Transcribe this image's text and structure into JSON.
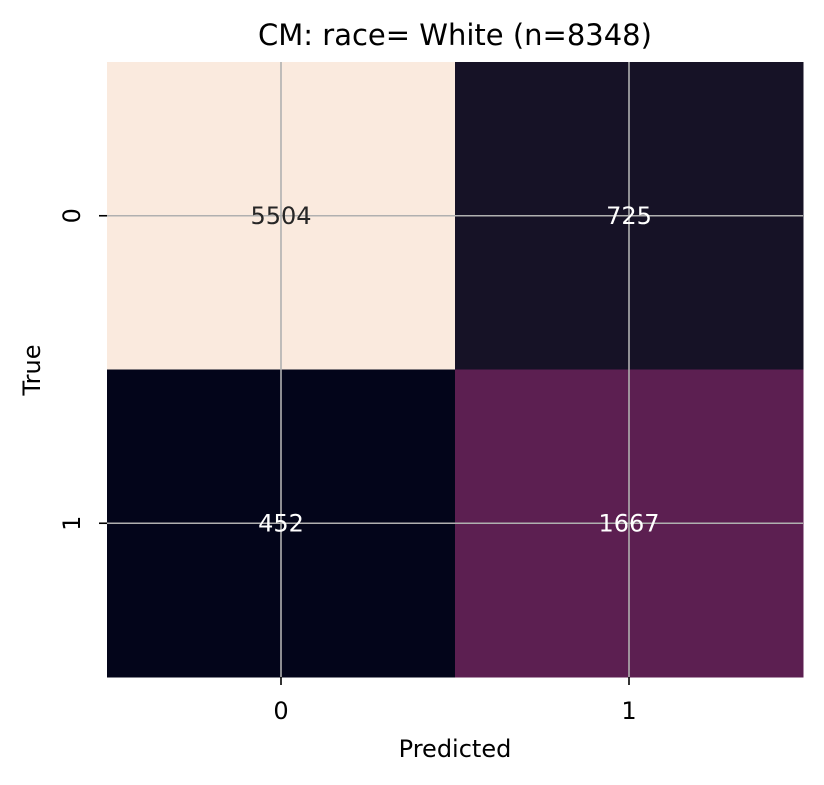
{
  "chart_data": {
    "type": "heatmap",
    "title": "CM: race= White (n=8348)",
    "xlabel": "Predicted",
    "ylabel": "True",
    "x_categories": [
      "0",
      "1"
    ],
    "y_categories": [
      "0",
      "1"
    ],
    "values": [
      [
        5504,
        725
      ],
      [
        452,
        1667
      ]
    ],
    "cell_labels": [
      [
        "5504",
        "725"
      ],
      [
        "452",
        "1667"
      ]
    ],
    "colorscale": "rocket",
    "colors": [
      [
        "#faeade",
        "#161226"
      ],
      [
        "#03051a",
        "#5c1f51"
      ]
    ],
    "text_colors": [
      [
        "#262626",
        "#ffffff"
      ],
      [
        "#ffffff",
        "#ffffff"
      ]
    ],
    "grid": true,
    "grid_color": "#b0b0b0",
    "colorbar": false
  }
}
